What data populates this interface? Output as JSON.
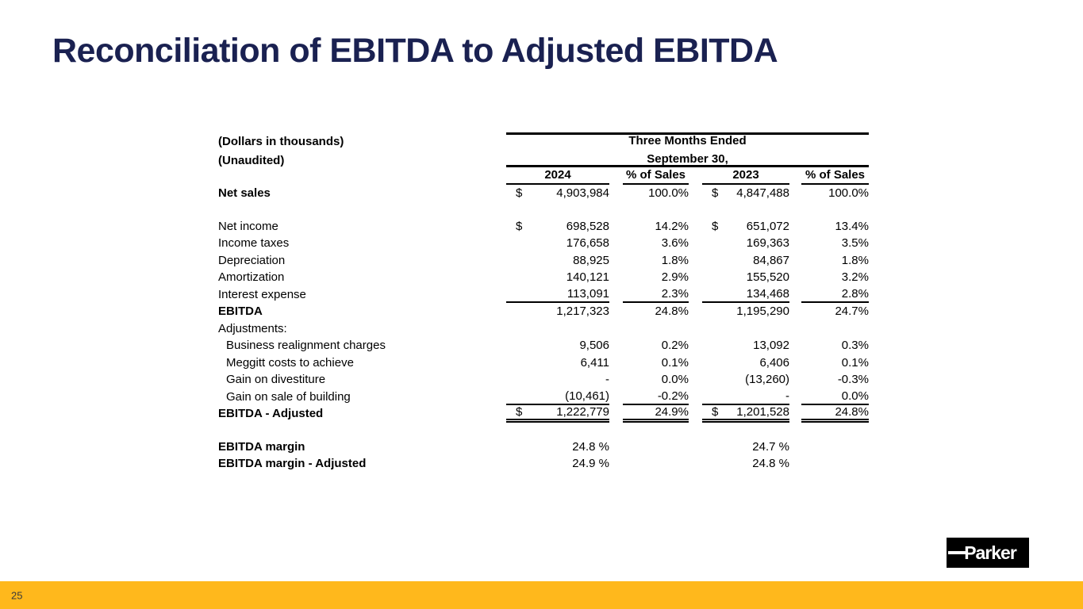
{
  "slide": {
    "title": "Reconciliation of EBITDA to Adjusted EBITDA",
    "page_number": "25"
  },
  "logo": {
    "text": "Parker"
  },
  "colors": {
    "title": "#1A2151",
    "accent": "#FFB81C",
    "logo_bg": "#000000"
  },
  "table": {
    "unit_note": "(Dollars in thousands)",
    "audit_note": "(Unaudited)",
    "period_header_line1": "Three Months Ended",
    "period_header_line2": "September 30,",
    "column_headers": [
      "2024",
      "% of Sales",
      "2023",
      "% of Sales"
    ],
    "rows": [
      {
        "label": "Net sales",
        "bold": true,
        "d1": "$",
        "v1": "4,903,984",
        "p1": "100.0%",
        "d2": "$",
        "v2": "4,847,488",
        "p2": "100.0%",
        "gap_after": true
      },
      {
        "label": "Net income",
        "d1": "$",
        "v1": "698,528",
        "p1": "14.2%",
        "d2": "$",
        "v2": "651,072",
        "p2": "13.4%"
      },
      {
        "label": "Income taxes",
        "v1": "176,658",
        "p1": "3.6%",
        "v2": "169,363",
        "p2": "3.5%"
      },
      {
        "label": "Depreciation",
        "v1": "88,925",
        "p1": "1.8%",
        "v2": "84,867",
        "p2": "1.8%"
      },
      {
        "label": "Amortization",
        "v1": "140,121",
        "p1": "2.9%",
        "v2": "155,520",
        "p2": "3.2%"
      },
      {
        "label": "Interest expense",
        "v1": "113,091",
        "p1": "2.3%",
        "v2": "134,468",
        "p2": "2.8%",
        "rule_below": true
      },
      {
        "label": "EBITDA",
        "bold": true,
        "v1": "1,217,323",
        "p1": "24.8%",
        "v2": "1,195,290",
        "p2": "24.7%"
      },
      {
        "label": "Adjustments:"
      },
      {
        "label": "Business realignment charges",
        "indent": true,
        "v1": "9,506",
        "p1": "0.2%",
        "v2": "13,092",
        "p2": "0.3%"
      },
      {
        "label": "Meggitt costs to achieve",
        "indent": true,
        "v1": "6,411",
        "p1": "0.1%",
        "v2": "6,406",
        "p2": "0.1%"
      },
      {
        "label": "Gain on divestiture",
        "indent": true,
        "v1": "-",
        "p1": "0.0%",
        "v2": "(13,260)",
        "p2": "-0.3%"
      },
      {
        "label": "Gain on sale of building",
        "indent": true,
        "v1": "(10,461)",
        "p1": "-0.2%",
        "v2": "-",
        "p2": "0.0%",
        "rule_below": true
      },
      {
        "label": "EBITDA - Adjusted",
        "bold": true,
        "d1": "$",
        "v1": "1,222,779",
        "p1": "24.9%",
        "d2": "$",
        "v2": "1,201,528",
        "p2": "24.8%",
        "double_below": true,
        "gap_after": true
      },
      {
        "label": "EBITDA margin",
        "bold": true,
        "v1": "24.8 %",
        "v2": "24.7 %"
      },
      {
        "label": "EBITDA margin - Adjusted",
        "bold": true,
        "v1": "24.9 %",
        "v2": "24.8 %"
      }
    ]
  }
}
